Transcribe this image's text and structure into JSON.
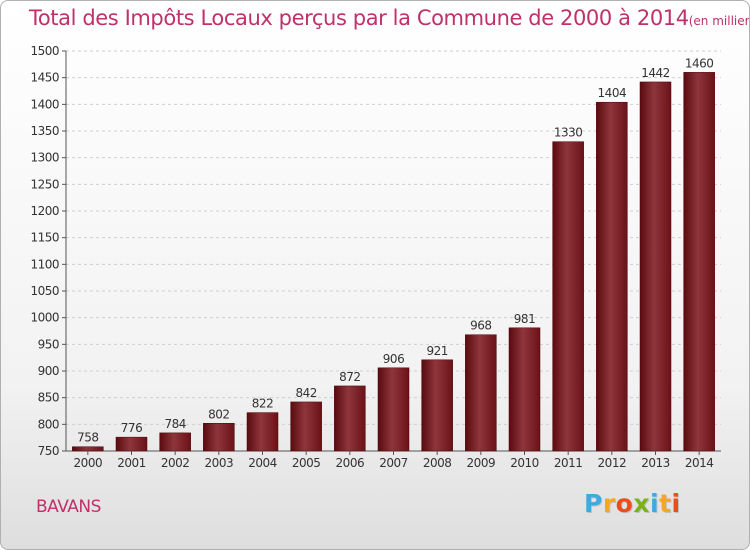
{
  "chart_data": {
    "type": "bar",
    "title": "Total des Impôts Locaux perçus par la Commune de 2000 à 2014",
    "title_unit": "(en milliers d'€)",
    "categories": [
      "2000",
      "2001",
      "2002",
      "2003",
      "2004",
      "2005",
      "2006",
      "2007",
      "2008",
      "2009",
      "2010",
      "2011",
      "2012",
      "2013",
      "2014"
    ],
    "values": [
      758,
      776,
      784,
      802,
      822,
      842,
      872,
      906,
      921,
      968,
      981,
      1330,
      1404,
      1442,
      1460
    ],
    "xlabel": "",
    "ylabel": "",
    "ylim": [
      750,
      1500
    ],
    "yticks": [
      750,
      800,
      850,
      900,
      950,
      1000,
      1050,
      1100,
      1150,
      1200,
      1250,
      1300,
      1350,
      1400,
      1450,
      1500
    ],
    "grid": true,
    "bar_color": "#7a1a1f"
  },
  "commune": "BAVANS",
  "logo": {
    "letters": [
      "P",
      "r",
      "o",
      "x",
      "i",
      "t",
      "i"
    ],
    "colors": [
      "#3fa9e0",
      "#f5a623",
      "#e94e1b",
      "#7ab317",
      "#3fa9e0",
      "#f5a623",
      "#e94e1b"
    ]
  }
}
